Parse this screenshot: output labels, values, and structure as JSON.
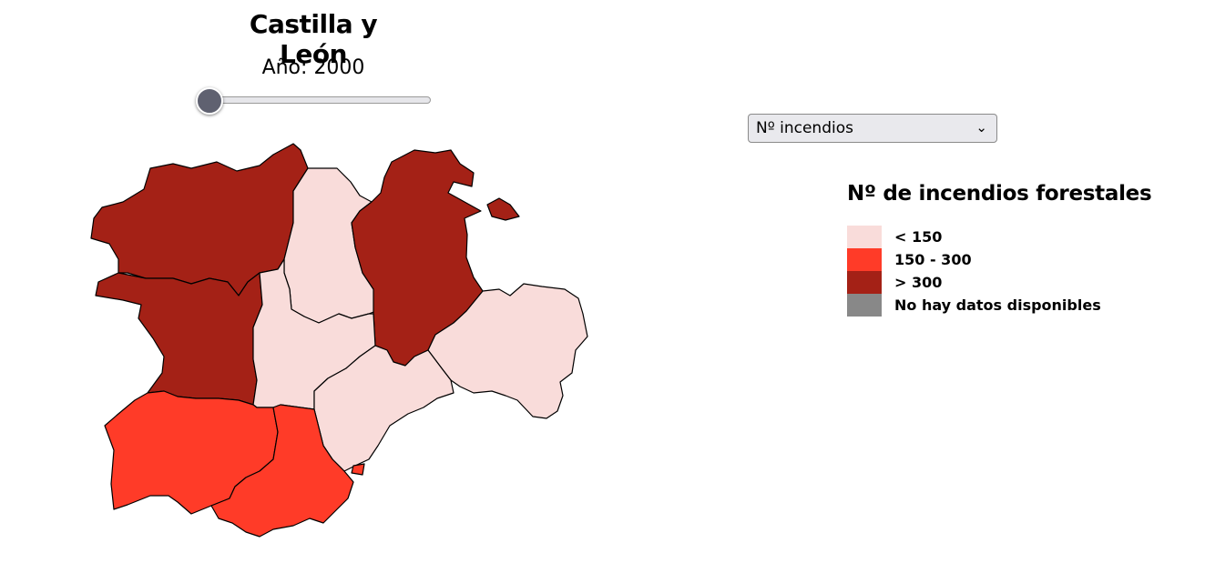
{
  "title": "Castilla y León",
  "year_label": "Año:",
  "year": "2000",
  "slider": {
    "min": 2000,
    "max": 2020,
    "value": 2000
  },
  "metric_select": {
    "selected": "Nº incendios"
  },
  "legend": {
    "title": "Nº de incendios forestales",
    "items": [
      {
        "label": "< 150",
        "color": "#f9dcda"
      },
      {
        "label": "150 - 300",
        "color": "#ff3b28"
      },
      {
        "label": "> 300",
        "color": "#a42116"
      },
      {
        "label": "No hay datos disponibles",
        "color": "#888888"
      }
    ]
  },
  "provinces": [
    {
      "id": "leon",
      "color": "#a42116"
    },
    {
      "id": "palencia",
      "color": "#f9dcda"
    },
    {
      "id": "burgos",
      "color": "#a42116"
    },
    {
      "id": "zamora",
      "color": "#a42116"
    },
    {
      "id": "valladolid",
      "color": "#f9dcda"
    },
    {
      "id": "soria",
      "color": "#f9dcda"
    },
    {
      "id": "segovia",
      "color": "#f9dcda"
    },
    {
      "id": "salamanca",
      "color": "#ff3b28"
    },
    {
      "id": "avila",
      "color": "#ff3b28"
    }
  ]
}
